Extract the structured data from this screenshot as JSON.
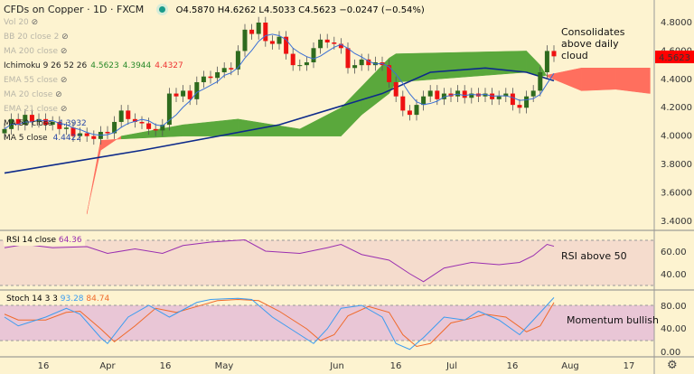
{
  "header": {
    "title": "CFDs on Copper · 1D · FXCM",
    "open": "O4.5870",
    "high": "H4.6262",
    "low": "L4.5033",
    "close": "C4.5623",
    "change": "−0.0247 (−0.54%)"
  },
  "legend": [
    {
      "label": "Vol 20",
      "hidden": true
    },
    {
      "label": "BB 20 close 2",
      "hidden": true
    },
    {
      "label": "MA 200 close",
      "hidden": true
    },
    {
      "label": "Ichimoku 9 26 52 26",
      "hidden": false,
      "values": [
        "4.5623",
        "4.3944",
        "4.4327"
      ]
    },
    {
      "label": "EMA 55 close",
      "hidden": true
    },
    {
      "label": "MA 20 close",
      "hidden": true
    },
    {
      "label": "EMA 21 close",
      "hidden": true
    },
    {
      "label": "MA 50 close",
      "hidden": false,
      "value": "4.3932"
    },
    {
      "label": "MA 5 close",
      "hidden": false,
      "value": "4.4422"
    }
  ],
  "annotations": {
    "cloud": "Consolidates above daily cloud",
    "rsi": "RSI above 50",
    "stoch": "Momentum bullish"
  },
  "rsi": {
    "label": "RSI 14 close",
    "value": "64.36"
  },
  "stoch": {
    "label": "Stoch 14 3 3",
    "k": "93.28",
    "d": "84.74"
  },
  "price_axis": [
    "4.8000",
    "4.6000",
    "4.4000",
    "4.2000",
    "4.0000",
    "3.8000",
    "3.6000",
    "3.4000"
  ],
  "last_price": "4.5623",
  "rsi_axis": [
    "60.00",
    "40.00"
  ],
  "stoch_axis": [
    "80.00",
    "40.00",
    "0.00"
  ],
  "time_axis": [
    "16",
    "Apr",
    "16",
    "May",
    "Jun",
    "16",
    "Jul",
    "16",
    "Aug",
    "17"
  ],
  "colors": {
    "up": "#2e6b1e",
    "down": "#ee1111",
    "ma50": "#0d2a8a",
    "ma5": "#3a6fd6",
    "cloud_bull": "#5aa83c",
    "cloud_bear": "#ff6f5e",
    "rsi": "#9a2fb0",
    "stoch_k": "#3b9cf0",
    "stoch_d": "#f06a2a"
  },
  "chart_data": {
    "type": "line",
    "title": "CFDs on Copper · 1D · FXCM",
    "x_unit": "daily bar index",
    "ylim": [
      3.4,
      4.8
    ],
    "closes": [
      4.05,
      4.12,
      4.08,
      4.15,
      4.1,
      4.12,
      4.08,
      4.1,
      4.05,
      4.06,
      4.0,
      4.02,
      4.0,
      3.98,
      4.03,
      4.02,
      4.1,
      4.18,
      4.12,
      4.1,
      4.09,
      4.05,
      4.04,
      4.08,
      4.3,
      4.28,
      4.32,
      4.26,
      4.38,
      4.42,
      4.41,
      4.45,
      4.48,
      4.47,
      4.6,
      4.75,
      4.72,
      4.8,
      4.67,
      4.65,
      4.7,
      4.58,
      4.5,
      4.5,
      4.52,
      4.62,
      4.68,
      4.66,
      4.65,
      4.62,
      4.48,
      4.5,
      4.54,
      4.5,
      4.52,
      4.5,
      4.38,
      4.28,
      4.18,
      4.15,
      4.22,
      4.28,
      4.32,
      4.26,
      4.3,
      4.28,
      4.32,
      4.27,
      4.3,
      4.28,
      4.3,
      4.26,
      4.28,
      4.3,
      4.22,
      4.2,
      4.28,
      4.32,
      4.45,
      4.6,
      4.5623
    ],
    "ma50": [
      [
        0,
        3.74
      ],
      [
        20,
        3.9
      ],
      [
        40,
        4.08
      ],
      [
        55,
        4.3
      ],
      [
        62,
        4.45
      ],
      [
        70,
        4.48
      ],
      [
        76,
        4.45
      ],
      [
        80,
        4.39
      ]
    ],
    "cloud": [
      [
        12,
        3.46,
        3.45
      ],
      [
        14,
        3.9,
        3.97
      ],
      [
        17,
        4.0,
        3.98
      ],
      [
        26,
        4.08,
        4.0
      ],
      [
        34,
        4.12,
        4.0
      ],
      [
        43,
        4.05,
        4.0
      ],
      [
        49,
        4.2,
        4.0
      ],
      [
        52,
        4.35,
        4.15
      ],
      [
        56,
        4.55,
        4.3
      ],
      [
        57,
        4.58,
        4.38
      ],
      [
        76,
        4.6,
        4.45
      ],
      [
        78,
        4.5,
        4.42
      ],
      [
        79,
        4.42,
        4.43
      ],
      [
        84,
        4.32,
        4.48
      ],
      [
        89,
        4.33,
        4.48
      ],
      [
        94,
        4.3,
        4.48
      ]
    ],
    "rsi": [
      [
        0,
        63
      ],
      [
        3,
        66
      ],
      [
        7,
        63
      ],
      [
        12,
        64
      ],
      [
        15,
        58
      ],
      [
        19,
        62
      ],
      [
        23,
        58
      ],
      [
        26,
        65
      ],
      [
        30,
        68
      ],
      [
        35,
        70
      ],
      [
        38,
        60
      ],
      [
        43,
        58
      ],
      [
        47,
        63
      ],
      [
        49,
        66
      ],
      [
        52,
        57
      ],
      [
        56,
        52
      ],
      [
        59,
        40
      ],
      [
        61,
        33
      ],
      [
        64,
        45
      ],
      [
        68,
        50
      ],
      [
        72,
        48
      ],
      [
        75,
        50
      ],
      [
        77,
        56
      ],
      [
        79,
        66
      ],
      [
        80,
        64.36
      ]
    ],
    "stoch_k": [
      [
        0,
        60
      ],
      [
        2,
        45
      ],
      [
        6,
        60
      ],
      [
        9,
        75
      ],
      [
        11,
        65
      ],
      [
        14,
        25
      ],
      [
        15,
        15
      ],
      [
        18,
        60
      ],
      [
        21,
        80
      ],
      [
        24,
        60
      ],
      [
        28,
        85
      ],
      [
        30,
        90
      ],
      [
        34,
        92
      ],
      [
        36,
        90
      ],
      [
        39,
        60
      ],
      [
        43,
        30
      ],
      [
        45,
        15
      ],
      [
        47,
        40
      ],
      [
        49,
        75
      ],
      [
        52,
        80
      ],
      [
        55,
        60
      ],
      [
        57,
        15
      ],
      [
        59,
        5
      ],
      [
        61,
        25
      ],
      [
        64,
        60
      ],
      [
        67,
        55
      ],
      [
        69,
        70
      ],
      [
        72,
        55
      ],
      [
        75,
        30
      ],
      [
        77,
        55
      ],
      [
        80,
        93.28
      ]
    ],
    "stoch_d": [
      [
        0,
        65
      ],
      [
        2,
        55
      ],
      [
        6,
        55
      ],
      [
        9,
        68
      ],
      [
        11,
        70
      ],
      [
        14,
        40
      ],
      [
        16,
        18
      ],
      [
        19,
        45
      ],
      [
        22,
        75
      ],
      [
        25,
        68
      ],
      [
        28,
        78
      ],
      [
        31,
        88
      ],
      [
        34,
        90
      ],
      [
        37,
        88
      ],
      [
        40,
        70
      ],
      [
        44,
        40
      ],
      [
        46,
        20
      ],
      [
        48,
        30
      ],
      [
        50,
        62
      ],
      [
        53,
        78
      ],
      [
        56,
        68
      ],
      [
        58,
        30
      ],
      [
        60,
        10
      ],
      [
        62,
        15
      ],
      [
        65,
        50
      ],
      [
        68,
        58
      ],
      [
        70,
        65
      ],
      [
        73,
        60
      ],
      [
        76,
        35
      ],
      [
        78,
        45
      ],
      [
        80,
        84.74
      ]
    ]
  }
}
